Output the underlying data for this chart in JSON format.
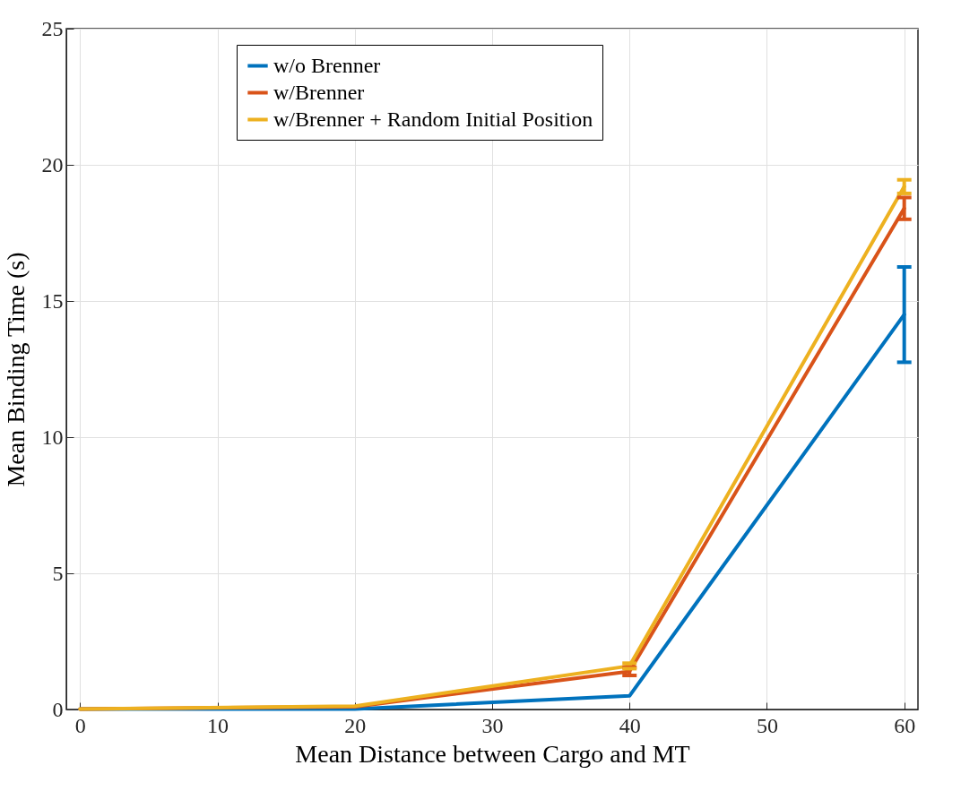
{
  "chart_data": {
    "type": "line",
    "xlabel": "Mean Distance between Cargo and MT",
    "ylabel": "Mean Binding Time (s)",
    "x": [
      0,
      20,
      40,
      60
    ],
    "xlim": [
      -1,
      61
    ],
    "xticks": [
      0,
      10,
      20,
      30,
      40,
      50,
      60
    ],
    "ylim": [
      0,
      25
    ],
    "yticks": [
      0,
      5,
      10,
      15,
      20,
      25
    ],
    "grid": true,
    "legend": "top",
    "marker": "none",
    "series": [
      {
        "name": "w/o Brenner",
        "color": "#0072bd",
        "values": [
          0.02,
          0.02,
          0.5,
          14.5
        ],
        "errors": [
          null,
          null,
          null,
          1.75
        ]
      },
      {
        "name": "w/Brenner",
        "color": "#d95319",
        "values": [
          0.02,
          0.1,
          1.4,
          18.4
        ],
        "errors": [
          null,
          null,
          0.15,
          0.4
        ]
      },
      {
        "name": "w/Brenner + Random Initial Position",
        "color": "#edb120",
        "values": [
          0.02,
          0.12,
          1.6,
          19.2
        ],
        "errors": [
          null,
          null,
          0.1,
          0.25
        ]
      }
    ]
  }
}
